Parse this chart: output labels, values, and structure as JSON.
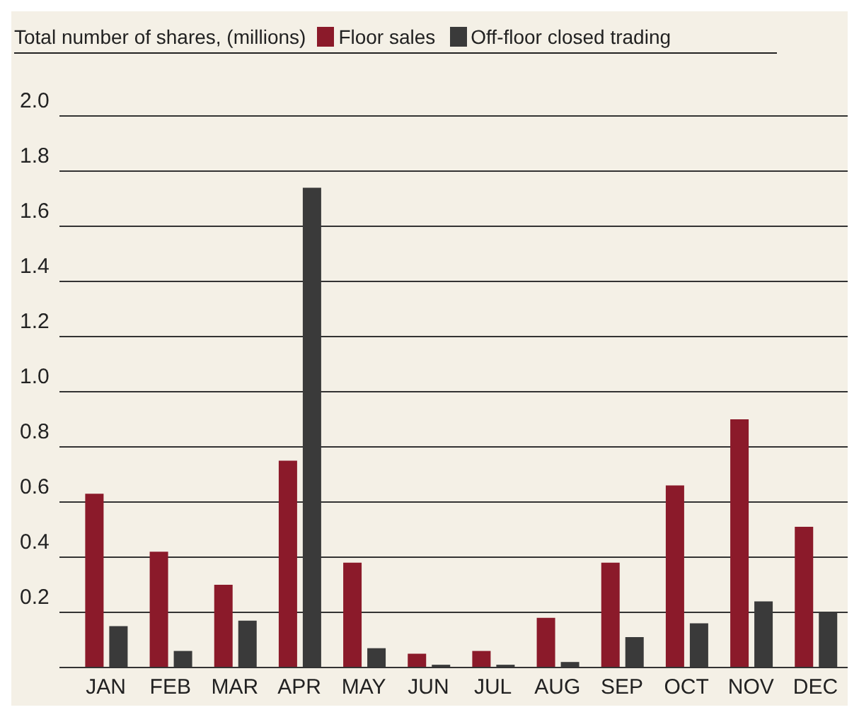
{
  "chart_data": {
    "type": "bar",
    "ylabel": "Total number of shares, (millions)",
    "categories": [
      "JAN",
      "FEB",
      "MAR",
      "APR",
      "MAY",
      "JUN",
      "JUL",
      "AUG",
      "SEP",
      "OCT",
      "NOV",
      "DEC"
    ],
    "series": [
      {
        "name": "Floor sales",
        "color": "#8b1a2a",
        "values": [
          0.63,
          0.42,
          0.3,
          0.75,
          0.38,
          0.05,
          0.06,
          0.18,
          0.38,
          0.66,
          0.9,
          0.51
        ]
      },
      {
        "name": "Off-floor closed trading",
        "color": "#3a3a3a",
        "values": [
          0.15,
          0.06,
          0.17,
          1.74,
          0.07,
          0.01,
          0.01,
          0.02,
          0.11,
          0.16,
          0.24,
          0.2
        ]
      }
    ],
    "ylim": [
      0,
      2.0
    ],
    "yticks": [
      0.2,
      0.4,
      0.6,
      0.8,
      {
        "value": 1,
        "label": "1.0"
      },
      1.2,
      1.4,
      1.6,
      1.8,
      {
        "value": 2,
        "label": "2.0"
      }
    ],
    "grid": "y",
    "legend": "top"
  }
}
